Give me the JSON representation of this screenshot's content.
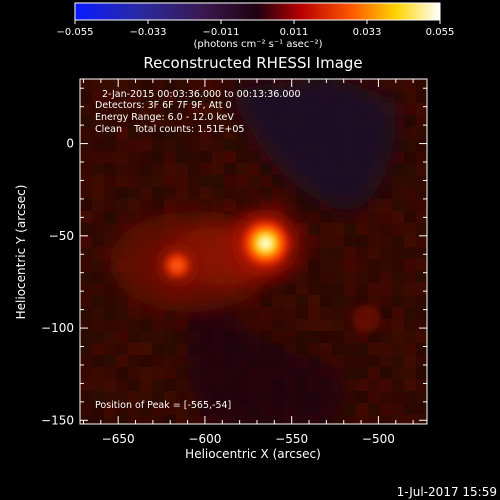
{
  "colorbar": {
    "tick_labels": [
      "−0.055",
      "−0.033",
      "−0.011",
      "0.011",
      "0.033",
      "0.055"
    ],
    "unit_label": "(photons cm⁻² s⁻¹ asec⁻²)"
  },
  "footer": {
    "timestamp": "1-Jul-2017 15:59"
  },
  "chart_data": {
    "type": "heatmap",
    "title": "Reconstructed RHESSI Image",
    "xlabel": "Heliocentric X (arcsec)",
    "ylabel": "Heliocentric Y (arcsec)",
    "xlim": [
      -672,
      -472
    ],
    "ylim": [
      -152,
      35
    ],
    "x_ticks": [
      -650,
      -600,
      -550,
      -500
    ],
    "y_ticks": [
      -150,
      -100,
      -50,
      0
    ],
    "colorbar_range": [
      -0.055,
      0.055
    ],
    "colormap": "rhessi-blue-black-red-yellow-white",
    "annotations": [
      "2-Jan-2015 00:03:36.000 to 00:13:36.000",
      "Detectors: 3F 6F 7F 9F, Att 0",
      "Energy Range: 6.0 - 12.0 keV",
      "Clean    Total counts: 1.51E+05"
    ],
    "peak_annotation": "Position of Peak = [-565,-54]",
    "sources": [
      {
        "x": -565,
        "y": -54,
        "peak": 0.055
      },
      {
        "x": -616,
        "y": -66,
        "peak": 0.036
      },
      {
        "x": -507,
        "y": -95,
        "peak": 0.011
      }
    ],
    "grid": false,
    "colors": {
      "background": "#000000",
      "plot_bg": "#2a0800",
      "negative_lobe": "#1a0a28",
      "peak": "#ffffff"
    }
  }
}
